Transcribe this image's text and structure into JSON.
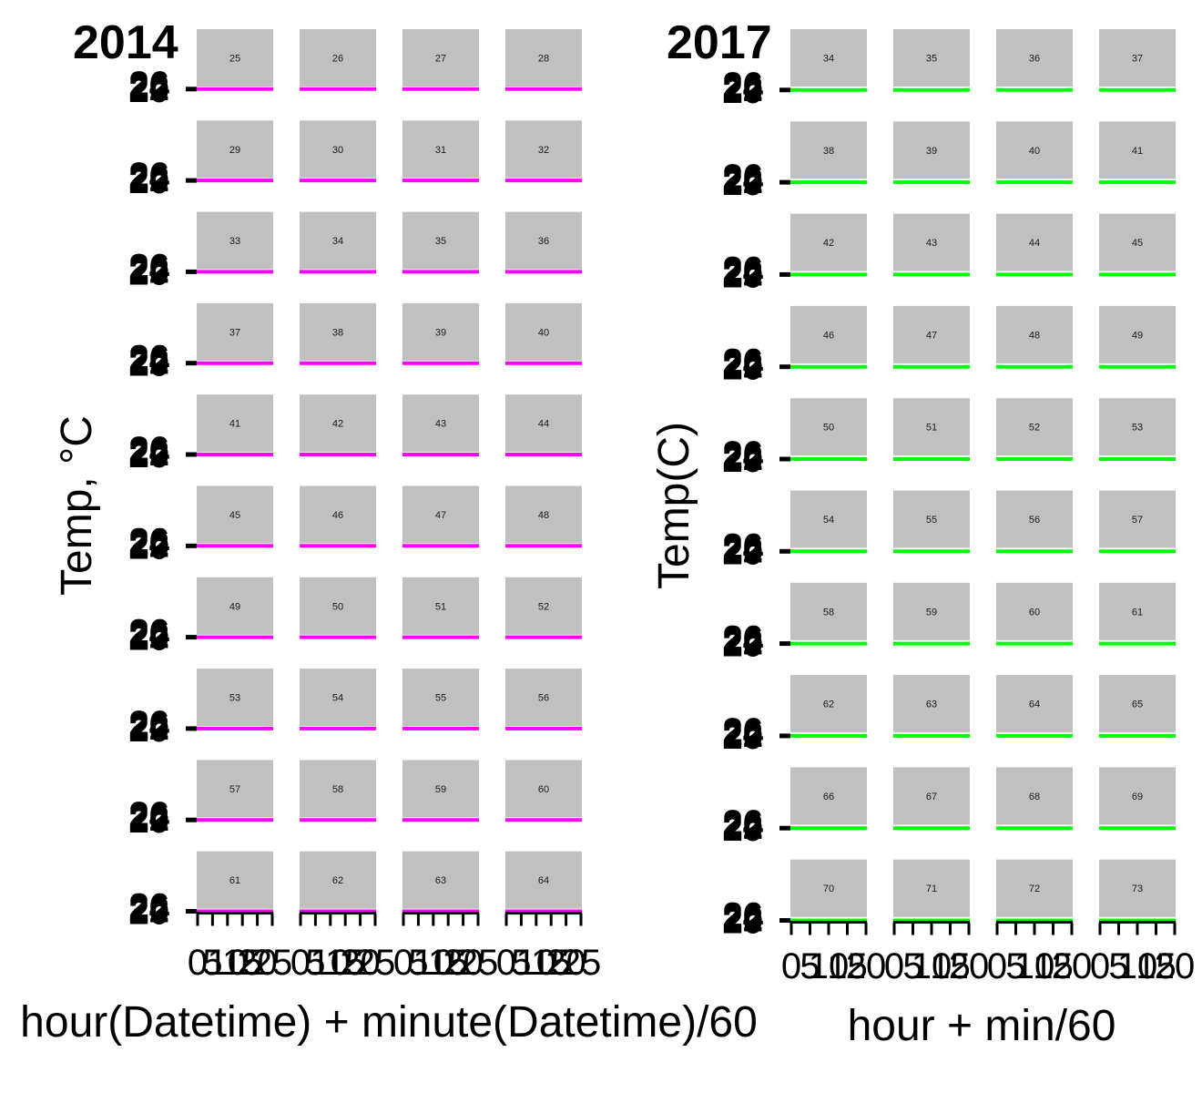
{
  "chart_data": [
    {
      "type": "line",
      "title": "2014",
      "xlabel": "hour(Datetime) + minute(Datetime)/60",
      "ylabel": "Temp, °C",
      "facet_labels": [
        "25",
        "26",
        "27",
        "28",
        "29",
        "30",
        "31",
        "32",
        "33",
        "34",
        "35",
        "36",
        "37",
        "38",
        "39",
        "40",
        "41",
        "42",
        "43",
        "44",
        "45",
        "46",
        "47",
        "48",
        "49",
        "50",
        "51",
        "52",
        "53",
        "54",
        "55",
        "56",
        "57",
        "58",
        "59",
        "60",
        "61",
        "62",
        "63",
        "64"
      ],
      "facet_grid": {
        "rows": 10,
        "cols": 4
      },
      "y_ticks": [
        "20",
        "22",
        "24",
        "26"
      ],
      "x_ticks": [
        "0",
        "5",
        "10",
        "15",
        "20",
        "25"
      ],
      "xlim": [
        0,
        25
      ],
      "ylim": [
        20,
        26
      ],
      "series_color": "#ff00ff",
      "strip_color": "#c0c0c0",
      "grid": false
    },
    {
      "type": "line",
      "title": "2017",
      "xlabel": "hour + min/60",
      "ylabel": "Temp(C)",
      "facet_labels": [
        "34",
        "35",
        "36",
        "37",
        "38",
        "39",
        "40",
        "41",
        "42",
        "43",
        "44",
        "45",
        "46",
        "47",
        "48",
        "49",
        "50",
        "51",
        "52",
        "53",
        "54",
        "55",
        "56",
        "57",
        "58",
        "59",
        "60",
        "61",
        "62",
        "63",
        "64",
        "65",
        "66",
        "67",
        "68",
        "69",
        "70",
        "71",
        "72",
        "73"
      ],
      "facet_grid": {
        "rows": 10,
        "cols": 4
      },
      "y_ticks": [
        "20",
        "22",
        "24",
        "26"
      ],
      "x_ticks": [
        "0",
        "5",
        "10",
        "15",
        "20"
      ],
      "xlim": [
        0,
        20
      ],
      "ylim": [
        20,
        26
      ],
      "series_color": "#00ff00",
      "strip_color": "#c0c0c0",
      "grid": false
    }
  ]
}
